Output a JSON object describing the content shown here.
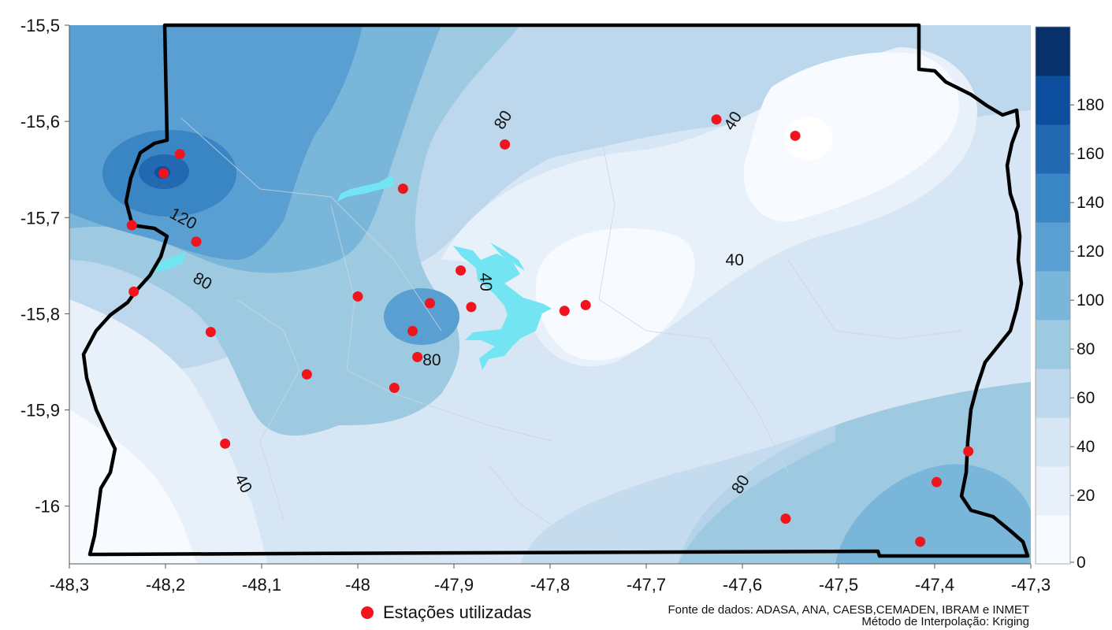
{
  "chart_data": {
    "type": "map",
    "x_ticks": [
      "-48,3",
      "-48,2",
      "-48,1",
      "-48",
      "-47,9",
      "-47,8",
      "-47,7",
      "-47,6",
      "-47,5",
      "-47,4",
      "-47,3"
    ],
    "y_ticks": [
      "-15,5",
      "-15,6",
      "-15,7",
      "-15,8",
      "-15,9",
      "-16"
    ],
    "xlim": [
      -48.3,
      -47.3
    ],
    "ylim": [
      -16.06,
      -15.5
    ],
    "colorbar": {
      "ticks": [
        "0",
        "20",
        "40",
        "60",
        "80",
        "100",
        "120",
        "140",
        "160",
        "180"
      ],
      "colors": [
        "#f7fbff",
        "#e8f1fa",
        "#d6e6f4",
        "#bdd7ec",
        "#9ecae1",
        "#7ab5da",
        "#5a9fd1",
        "#3a85c3",
        "#2369b2",
        "#0d4f9e",
        "#08306b"
      ]
    },
    "contour_labels": [
      {
        "text": "80",
        "lon": -47.848,
        "lat": -15.599,
        "angle": -58
      },
      {
        "text": "40",
        "lon": -47.609,
        "lat": -15.6,
        "angle": -58
      },
      {
        "text": "120",
        "lon": -48.182,
        "lat": -15.702,
        "angle": 28
      },
      {
        "text": "40",
        "lon": -47.608,
        "lat": -15.745,
        "angle": 0
      },
      {
        "text": "40",
        "lon": -47.868,
        "lat": -15.767,
        "angle": 88
      },
      {
        "text": "80",
        "lon": -48.162,
        "lat": -15.767,
        "angle": 28
      },
      {
        "text": "80",
        "lon": -47.923,
        "lat": -15.849,
        "angle": 0
      },
      {
        "text": "40",
        "lon": -48.12,
        "lat": -15.977,
        "angle": 62
      },
      {
        "text": "80",
        "lon": -47.601,
        "lat": -15.978,
        "angle": -58
      }
    ],
    "stations": [
      [
        -48.202,
        -15.654
      ],
      [
        -48.185,
        -15.634
      ],
      [
        -48.235,
        -15.708
      ],
      [
        -48.168,
        -15.725
      ],
      [
        -48.233,
        -15.777
      ],
      [
        -48.153,
        -15.819
      ],
      [
        -48.138,
        -15.935
      ],
      [
        -48.053,
        -15.863
      ],
      [
        -48.0,
        -15.782
      ],
      [
        -47.953,
        -15.67
      ],
      [
        -47.943,
        -15.818
      ],
      [
        -47.938,
        -15.845
      ],
      [
        -47.925,
        -15.789
      ],
      [
        -47.962,
        -15.877
      ],
      [
        -47.893,
        -15.755
      ],
      [
        -47.882,
        -15.793
      ],
      [
        -47.847,
        -15.624
      ],
      [
        -47.785,
        -15.797
      ],
      [
        -47.763,
        -15.791
      ],
      [
        -47.627,
        -15.598
      ],
      [
        -47.545,
        -15.615
      ],
      [
        -47.555,
        -16.013
      ],
      [
        -47.415,
        -16.037
      ],
      [
        -47.398,
        -15.975
      ],
      [
        -47.365,
        -15.943
      ]
    ],
    "colors": {
      "station": "#f2141c",
      "lake": "#72e4f2",
      "border": "#000000",
      "roads": "#cfd8e2"
    }
  },
  "legend": {
    "stations_label": "Estações utilizadas"
  },
  "source": {
    "line1": "Fonte de dados: ADASA, ANA, CAESB,CEMADEN, IBRAM e INMET",
    "line2": "Método de Interpolação: Kriging"
  }
}
